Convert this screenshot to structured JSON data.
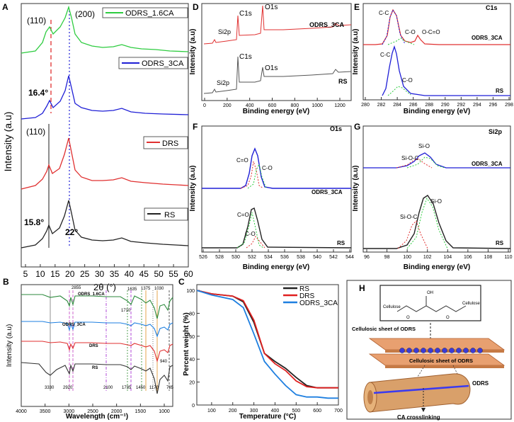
{
  "panels": {
    "A": {
      "letter": "A",
      "xlabel": "2θ (°)",
      "ylabel": "Intensity (a.u)",
      "xticks": [
        "5",
        "10",
        "15",
        "20",
        "25",
        "30",
        "35",
        "40",
        "45",
        "50",
        "55",
        "60"
      ],
      "legend": [
        "ODRS_1.6CA",
        "ODRS_3CA",
        "DRS",
        "RS"
      ],
      "ann": {
        "p110a": "(110)",
        "p200": "(200)",
        "a164": "16.4°",
        "p110b": "(110)",
        "a158": "15.8°",
        "a22": "22°"
      }
    },
    "B": {
      "letter": "B",
      "xlabel": "Wavelength (cm⁻¹)",
      "ylabel": "Intensity (a.u)",
      "xticks": [
        "4000",
        "3500",
        "3000",
        "2500",
        "2000",
        "1500",
        "1000"
      ],
      "series": [
        "ODRS_1.6CA",
        "ODRS_3CA",
        "DRS",
        "RS"
      ],
      "peaks": {
        "p2855": "2855",
        "p1635": "1635",
        "p1375": "1375",
        "p1030": "1030",
        "p1710": "1710",
        "p940": "940",
        "p3330": "3330",
        "p2920": "2920",
        "p2100": "2100",
        "p1735": "1735",
        "p1450": "1450",
        "p1170": "1170",
        "p785": "785"
      }
    },
    "C": {
      "letter": "C",
      "xlabel": "Temperature (°C)",
      "ylabel": "Percent weight (%)",
      "xticks": [
        "100",
        "200",
        "300",
        "400",
        "500",
        "600",
        "700"
      ],
      "yticks": [
        "0",
        "20",
        "40",
        "60",
        "80",
        "100"
      ],
      "legend": [
        "RS",
        "DRS",
        "ODRS_3CA"
      ]
    },
    "D": {
      "letter": "D",
      "xlabel": "Binding energy (eV)",
      "ylabel": "Intensity (a.u)",
      "xticks": [
        "0",
        "200",
        "400",
        "600",
        "800",
        "1000",
        "1200"
      ],
      "ann": {
        "si2p_a": "Si2p",
        "c1s_a": "C1s",
        "o1s_a": "O1s",
        "name_a": "ODRS_3CA",
        "c1s_b": "C1s",
        "o1s_b": "O1s",
        "si2p_b": "Si2p",
        "name_b": "RS"
      }
    },
    "E": {
      "letter": "E",
      "title": "C1s",
      "xlabel": "Binding energy (eV)",
      "ylabel": "Intensity (a.u)",
      "xticks": [
        "280",
        "282",
        "284",
        "286",
        "288",
        "290",
        "292",
        "294",
        "296",
        "298"
      ],
      "ann": {
        "cc_a": "C-C",
        "co_a": "C-O",
        "oco": "O-C=O",
        "name_a": "ODRS_3CA",
        "cc_b": "C-C",
        "co_b": "C-O",
        "name_b": "RS"
      }
    },
    "F": {
      "letter": "F",
      "title": "O1s",
      "xlabel": "Binding energy (eV)",
      "ylabel": "Intensity (a.u)",
      "xticks": [
        "526",
        "528",
        "530",
        "532",
        "534",
        "536",
        "538",
        "540",
        "542",
        "544"
      ],
      "ann": {
        "ceo_a": "C=O",
        "co_a": "C-O",
        "name_a": "ODRS_3CA",
        "ceo_b": "C=O",
        "co_b": "C-O",
        "name_b": "RS"
      }
    },
    "G": {
      "letter": "G",
      "title": "Si2p",
      "xlabel": "Binding energy (eV)",
      "ylabel": "Intensity (a.u)",
      "xticks": [
        "96",
        "98",
        "100",
        "102",
        "104",
        "106",
        "108",
        "110"
      ],
      "ann": {
        "sio_a": "Si-O",
        "sioc_a": "Si-O-C",
        "name_a": "ODRS_3CA",
        "sio_b": "Si-O",
        "sioc_b": "Si-O-C",
        "name_b": "RS"
      }
    },
    "H": {
      "letter": "H",
      "labels": {
        "cellulose_l": "Cellulose",
        "cellulose_r": "Cellulose",
        "sheet_top": "Cellulosic sheet of ODRS",
        "sheet_bottom": "Cellulosic sheet of ODRS",
        "odrs": "ODRS",
        "cacross": "CA crosslinking",
        "oh": "OH",
        "o": "O"
      }
    }
  },
  "colors": {
    "green": "#2ecc40",
    "blue": "#1f1fd6",
    "red": "#e03030",
    "black": "#222222",
    "tga_blue": "#1e7fe0",
    "tga_red": "#e02020"
  },
  "chart_data": [
    {
      "type": "line",
      "panel": "A",
      "xlabel": "2θ (°)",
      "ylabel": "Intensity (a.u)",
      "xlim": [
        5,
        60
      ],
      "series": [
        {
          "name": "ODRS_1.6CA",
          "peaks": [
            16.4,
            22
          ]
        },
        {
          "name": "ODRS_3CA",
          "peaks": [
            16.4,
            22
          ]
        },
        {
          "name": "DRS",
          "peaks": [
            15.8,
            22
          ]
        },
        {
          "name": "RS",
          "peaks": [
            15.8,
            22
          ]
        }
      ]
    },
    {
      "type": "line",
      "panel": "B",
      "xlabel": "Wavelength (cm⁻¹)",
      "ylabel": "Intensity (a.u)",
      "xlim": [
        4000,
        700
      ],
      "series": [
        {
          "name": "ODRS_1.6CA"
        },
        {
          "name": "ODRS_3CA"
        },
        {
          "name": "DRS"
        },
        {
          "name": "RS"
        }
      ],
      "marked_peaks": [
        3330,
        2920,
        2855,
        2100,
        1735,
        1710,
        1635,
        1450,
        1375,
        1170,
        1030,
        940,
        785
      ]
    },
    {
      "type": "line",
      "panel": "C",
      "xlabel": "Temperature (°C)",
      "ylabel": "Percent weight (%)",
      "xlim": [
        30,
        700
      ],
      "ylim": [
        0,
        105
      ],
      "series": [
        {
          "name": "RS",
          "x": [
            30,
            100,
            200,
            250,
            300,
            350,
            400,
            450,
            500,
            550,
            600,
            650,
            700
          ],
          "y": [
            100,
            97,
            95,
            90,
            72,
            45,
            38,
            32,
            24,
            17,
            15,
            15,
            15
          ]
        },
        {
          "name": "DRS",
          "x": [
            30,
            100,
            200,
            250,
            300,
            350,
            400,
            450,
            500,
            550,
            600,
            650,
            700
          ],
          "y": [
            100,
            97,
            95,
            91,
            74,
            45,
            36,
            30,
            21,
            16,
            15,
            15,
            15
          ]
        },
        {
          "name": "ODRS_3CA",
          "x": [
            30,
            100,
            200,
            250,
            300,
            350,
            400,
            450,
            500,
            550,
            600,
            650,
            700
          ],
          "y": [
            100,
            96,
            92,
            85,
            62,
            38,
            27,
            17,
            9,
            7,
            7,
            6,
            6
          ]
        }
      ]
    },
    {
      "type": "line",
      "panel": "D",
      "xlabel": "Binding energy (eV)",
      "ylabel": "Intensity (a.u)",
      "xlim": [
        0,
        1300
      ],
      "series": [
        {
          "name": "ODRS_3CA",
          "peaks": [
            102,
            285,
            532
          ]
        },
        {
          "name": "RS",
          "peaks": [
            102,
            285,
            532
          ]
        }
      ]
    },
    {
      "type": "line",
      "panel": "E",
      "xlabel": "Binding energy (eV)",
      "ylabel": "Intensity (a.u)",
      "xlim": [
        279,
        298
      ],
      "series": [
        {
          "name": "ODRS_3CA",
          "components": {
            "C-C": 284.4,
            "C-O": 286.2,
            "O-C=O": 289.3
          }
        },
        {
          "name": "RS",
          "components": {
            "C-C": 284.6,
            "C-O": 286.2
          }
        }
      ]
    },
    {
      "type": "line",
      "panel": "F",
      "xlabel": "Binding energy (eV)",
      "ylabel": "Intensity (a.u)",
      "xlim": [
        525,
        545
      ],
      "series": [
        {
          "name": "ODRS_3CA",
          "components": {
            "C=O": 532.0,
            "C-O": 532.8
          }
        },
        {
          "name": "RS",
          "components": {
            "C=O": 531.6,
            "C-O": 532.5
          }
        }
      ]
    },
    {
      "type": "line",
      "panel": "G",
      "xlabel": "Binding energy (eV)",
      "ylabel": "Intensity (a.u)",
      "xlim": [
        95,
        110
      ],
      "series": [
        {
          "name": "ODRS_3CA",
          "components": {
            "Si-O": 102.6,
            "Si-O-C": 101.5
          }
        },
        {
          "name": "RS",
          "components": {
            "Si-O": 102.6,
            "Si-O-C": 101.4
          }
        }
      ]
    }
  ]
}
